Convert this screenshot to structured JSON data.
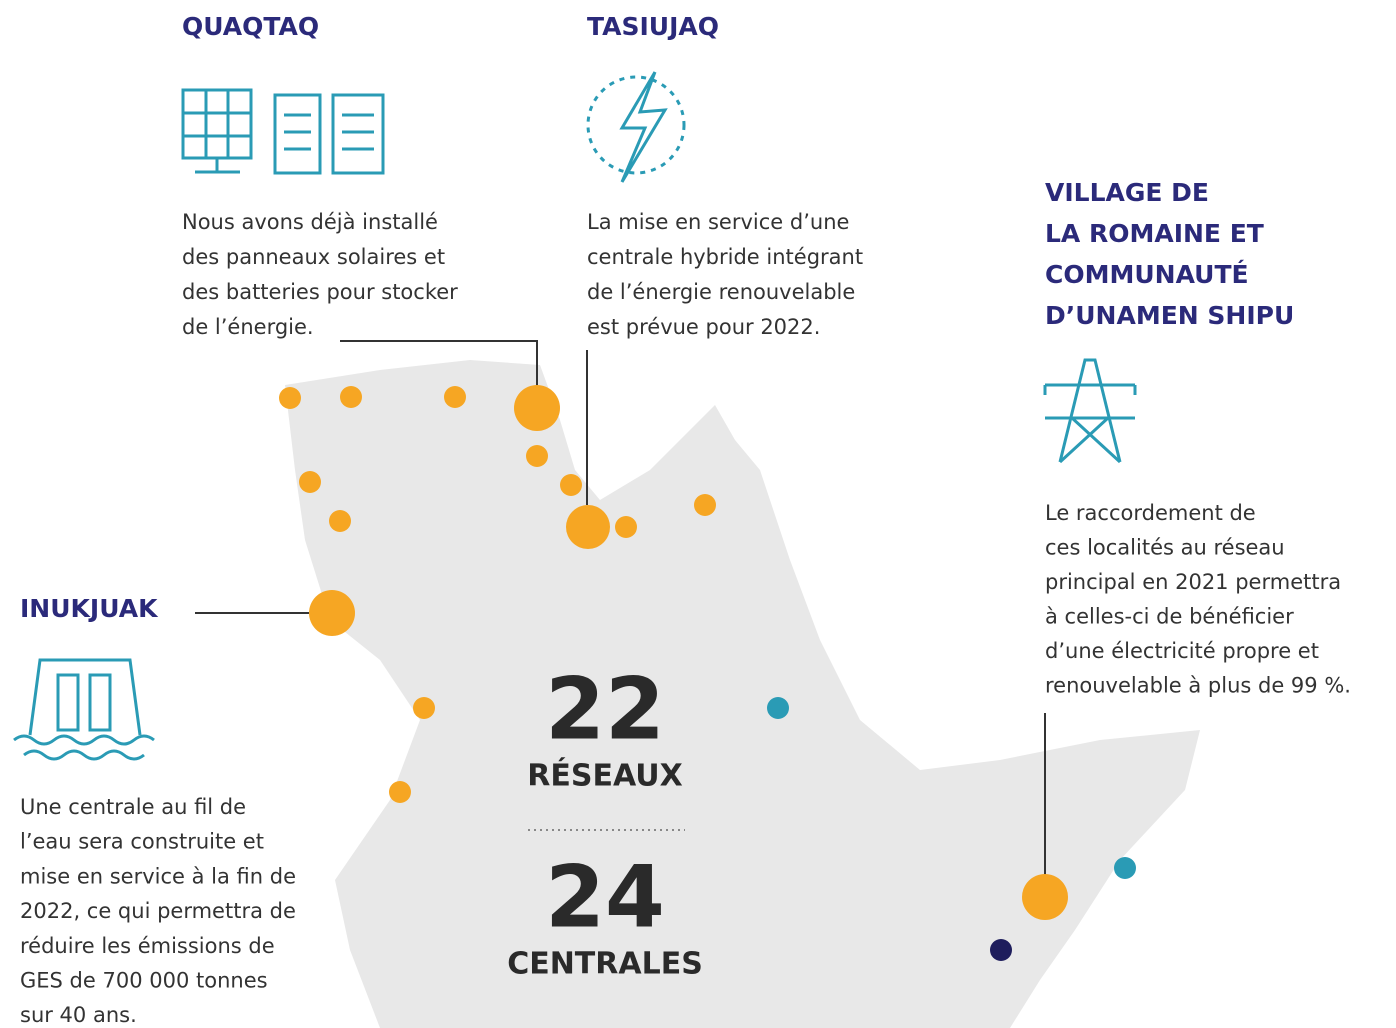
{
  "callouts": [
    {
      "title": [
        "QUAQTAQ"
      ],
      "text": [
        "Nous avons déjà installé",
        "des panneaux solaires et",
        "des batteries pour stocker",
        "de l’énergie."
      ]
    },
    {
      "title": [
        "TASIUJAQ"
      ],
      "text": [
        "La mise en service d’une",
        "centrale hybride intégrant",
        "de l’énergie renouvelable",
        "est prévue pour 2022."
      ]
    },
    {
      "title": [
        "VILLAGE DE",
        "LA ROMAINE ET",
        "COMMUNAUTÉ",
        "D’UNAMEN SHIPU"
      ],
      "text": [
        "Le raccordement de",
        "ces localités au réseau",
        "principal en 2021 permettra",
        "à celles-ci de bénéficier",
        "d’une électricité propre et",
        "renouvelable à plus de 99 %."
      ]
    },
    {
      "title": [
        "INUKJUAK"
      ],
      "text": [
        "Une centrale au fil de",
        "l’eau sera construite et",
        "mise en service à la fin de",
        "2022, ce qui permettra de",
        "réduire les émissions de",
        "GES de 700 000 tonnes",
        "sur 40 ans."
      ]
    }
  ],
  "stats": [
    {
      "value": 22,
      "label": "RÉSEAUX"
    },
    {
      "value": 24,
      "label": "CENTRALES"
    }
  ]
}
